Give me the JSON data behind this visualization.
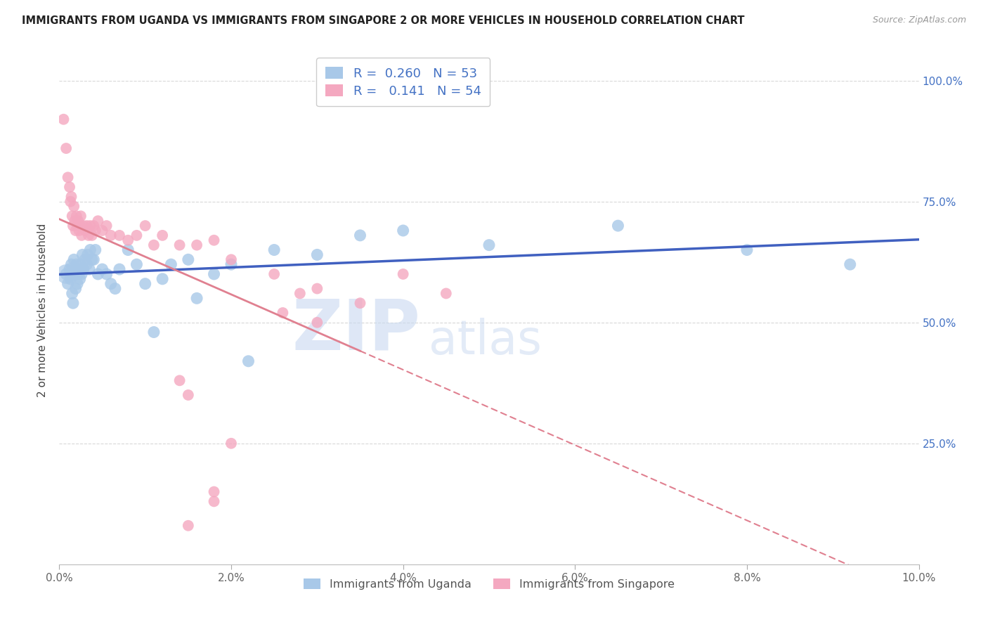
{
  "title": "IMMIGRANTS FROM UGANDA VS IMMIGRANTS FROM SINGAPORE 2 OR MORE VEHICLES IN HOUSEHOLD CORRELATION CHART",
  "source": "Source: ZipAtlas.com",
  "ylabel": "2 or more Vehicles in Household",
  "xlim": [
    0.0,
    0.1
  ],
  "ylim": [
    0.0,
    1.05
  ],
  "x_tick_labels": [
    "0.0%",
    "2.0%",
    "4.0%",
    "6.0%",
    "8.0%",
    "10.0%"
  ],
  "x_tick_vals": [
    0.0,
    0.02,
    0.04,
    0.06,
    0.08,
    0.1
  ],
  "y_tick_labels": [
    "25.0%",
    "50.0%",
    "75.0%",
    "100.0%"
  ],
  "y_tick_vals": [
    0.25,
    0.5,
    0.75,
    1.0
  ],
  "R_uganda": 0.26,
  "N_uganda": 53,
  "R_singapore": 0.141,
  "N_singapore": 54,
  "uganda_color": "#a8c8e8",
  "singapore_color": "#f4a8c0",
  "uganda_line_color": "#4060c0",
  "singapore_line_color": "#e08090",
  "legend_label_uganda": "Immigrants from Uganda",
  "legend_label_singapore": "Immigrants from Singapore",
  "watermark_zip": "ZIP",
  "watermark_atlas": "atlas",
  "background_color": "#ffffff",
  "grid_color": "#d8d8d8",
  "uganda_x": [
    0.0008,
    0.001,
    0.0012,
    0.0013,
    0.0014,
    0.0015,
    0.0015,
    0.0016,
    0.0017,
    0.0018,
    0.0019,
    0.002,
    0.0021,
    0.0022,
    0.0023,
    0.0024,
    0.0025,
    0.0026,
    0.0027,
    0.0028,
    0.003,
    0.0032,
    0.0033,
    0.0035,
    0.0036,
    0.0038,
    0.004,
    0.0042,
    0.0045,
    0.005,
    0.0055,
    0.006,
    0.0065,
    0.007,
    0.008,
    0.009,
    0.01,
    0.011,
    0.012,
    0.013,
    0.015,
    0.016,
    0.018,
    0.02,
    0.022,
    0.025,
    0.03,
    0.035,
    0.04,
    0.05,
    0.065,
    0.08,
    0.092
  ],
  "uganda_y": [
    0.6,
    0.58,
    0.61,
    0.59,
    0.62,
    0.6,
    0.56,
    0.54,
    0.63,
    0.6,
    0.57,
    0.62,
    0.58,
    0.6,
    0.61,
    0.59,
    0.62,
    0.6,
    0.64,
    0.61,
    0.63,
    0.62,
    0.64,
    0.61,
    0.65,
    0.63,
    0.63,
    0.65,
    0.6,
    0.61,
    0.6,
    0.58,
    0.57,
    0.61,
    0.65,
    0.62,
    0.58,
    0.48,
    0.59,
    0.62,
    0.63,
    0.55,
    0.6,
    0.62,
    0.42,
    0.65,
    0.64,
    0.68,
    0.69,
    0.66,
    0.7,
    0.65,
    0.62
  ],
  "singapore_x": [
    0.0005,
    0.0008,
    0.001,
    0.0012,
    0.0013,
    0.0014,
    0.0015,
    0.0016,
    0.0017,
    0.0018,
    0.0019,
    0.002,
    0.0021,
    0.0022,
    0.0023,
    0.0024,
    0.0025,
    0.0026,
    0.0028,
    0.003,
    0.0032,
    0.0034,
    0.0036,
    0.0038,
    0.004,
    0.0042,
    0.0045,
    0.005,
    0.0055,
    0.006,
    0.007,
    0.008,
    0.009,
    0.01,
    0.011,
    0.012,
    0.014,
    0.016,
    0.018,
    0.02,
    0.025,
    0.03,
    0.035,
    0.04,
    0.045,
    0.03,
    0.028,
    0.026,
    0.015,
    0.014,
    0.018,
    0.02,
    0.018,
    0.015
  ],
  "singapore_y": [
    0.92,
    0.86,
    0.8,
    0.78,
    0.75,
    0.76,
    0.72,
    0.7,
    0.74,
    0.71,
    0.69,
    0.72,
    0.7,
    0.71,
    0.69,
    0.7,
    0.72,
    0.68,
    0.7,
    0.69,
    0.7,
    0.68,
    0.7,
    0.68,
    0.7,
    0.69,
    0.71,
    0.69,
    0.7,
    0.68,
    0.68,
    0.67,
    0.68,
    0.7,
    0.66,
    0.68,
    0.66,
    0.66,
    0.67,
    0.63,
    0.6,
    0.57,
    0.54,
    0.6,
    0.56,
    0.5,
    0.56,
    0.52,
    0.35,
    0.38,
    0.15,
    0.25,
    0.13,
    0.08
  ]
}
